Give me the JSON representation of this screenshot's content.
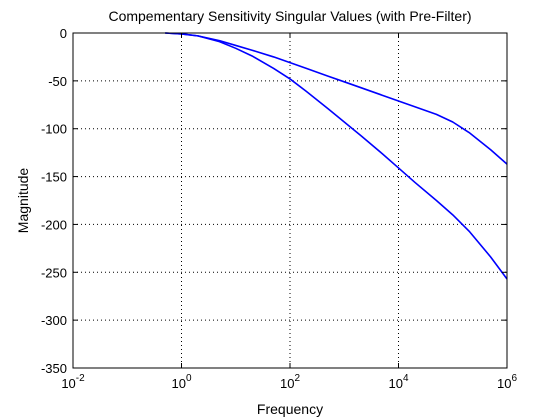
{
  "chart_data": {
    "type": "line",
    "title": "Compementary Sensitivity Singular Values (with Pre-Filter)",
    "xlabel": "Frequency",
    "ylabel": "Magnitude",
    "xscale": "log",
    "xlim": [
      0.01,
      1000000
    ],
    "ylim": [
      -350,
      0
    ],
    "grid": true,
    "line_color": "#0000ff",
    "x_ticks": [
      {
        "base": "10",
        "exp": "-2"
      },
      {
        "base": "10",
        "exp": "0"
      },
      {
        "base": "10",
        "exp": "2"
      },
      {
        "base": "10",
        "exp": "4"
      },
      {
        "base": "10",
        "exp": "6"
      }
    ],
    "y_ticks": [
      "0",
      "-50",
      "-100",
      "-150",
      "-200",
      "-250",
      "-300",
      "-350"
    ],
    "series": [
      {
        "x": [
          0.5,
          1,
          2,
          5,
          10,
          20,
          50,
          100,
          200,
          500,
          1000,
          2000,
          5000,
          10000,
          20000,
          50000,
          100000,
          200000,
          500000,
          1000000
        ],
        "y": [
          0,
          -1,
          -3,
          -8,
          -13,
          -18,
          -25,
          -31,
          -37,
          -45,
          -51,
          -57,
          -65,
          -71,
          -77,
          -85,
          -93,
          -104,
          -122,
          -137
        ]
      },
      {
        "x": [
          0.5,
          1,
          2,
          5,
          10,
          20,
          50,
          100,
          200,
          500,
          1000,
          2000,
          5000,
          10000,
          20000,
          50000,
          100000,
          200000,
          500000,
          1000000
        ],
        "y": [
          0,
          -1,
          -3,
          -9,
          -16,
          -24,
          -37,
          -48,
          -61,
          -79,
          -93,
          -107,
          -126,
          -141,
          -156,
          -175,
          -190,
          -207,
          -234,
          -257
        ]
      }
    ]
  }
}
